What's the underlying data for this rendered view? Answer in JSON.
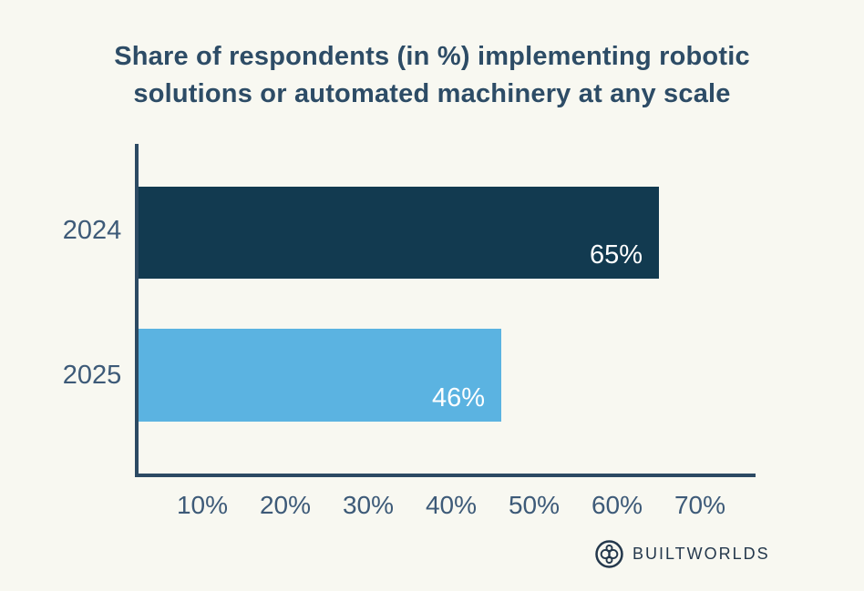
{
  "title_lines": [
    "Share of respondents (in %) implementing robotic",
    "solutions or automated machinery at any scale"
  ],
  "chart_data": {
    "type": "bar",
    "orientation": "horizontal",
    "title": "Share of respondents (in %) implementing robotic solutions or automated machinery at any scale",
    "categories": [
      "2024",
      "2025"
    ],
    "values": [
      65,
      46
    ],
    "value_labels": [
      "65%",
      "46%"
    ],
    "series": [
      {
        "name": "Share of respondents",
        "values": [
          65,
          46
        ]
      }
    ],
    "xlabel": "",
    "ylabel": "",
    "x_ticks": [
      "10%",
      "20%",
      "30%",
      "40%",
      "50%",
      "60%",
      "70%"
    ],
    "x_tick_values": [
      10,
      20,
      30,
      40,
      50,
      60,
      70
    ],
    "xlim": [
      0,
      75
    ],
    "grid": false,
    "legend": false,
    "bar_colors": [
      "#123a50",
      "#5bb3e1"
    ]
  },
  "footer": {
    "brand": "BUILTWORLDS",
    "logo_icon": "builtworlds-rings-icon"
  },
  "colors": {
    "background": "#f8f8f1",
    "title_text": "#2d4c66",
    "axis": "#2c4a63",
    "tick_text": "#3d5a78",
    "value_label_text": "#ffffff",
    "bar_2024": "#123a50",
    "bar_2025": "#5bb3e1",
    "logo": "#24384c"
  }
}
